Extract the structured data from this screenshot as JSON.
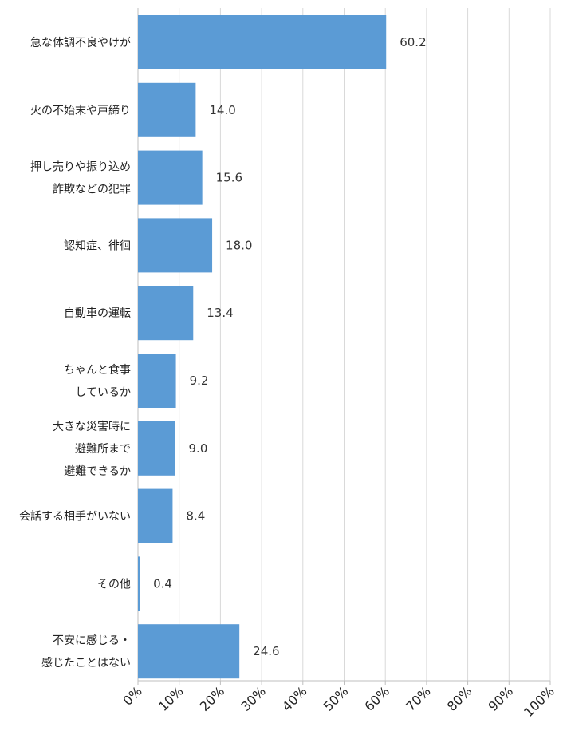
{
  "chart_data": {
    "type": "bar",
    "orientation": "horizontal",
    "categories": [
      [
        "急な体調不良やけが"
      ],
      [
        "火の不始末や戸締り"
      ],
      [
        "押し売りや振り込め",
        "詐欺などの犯罪"
      ],
      [
        "認知症、徘徊"
      ],
      [
        "自動車の運転"
      ],
      [
        "ちゃんと食事",
        "しているか"
      ],
      [
        "大きな災害時に",
        "避難所まで",
        "避難できるか"
      ],
      [
        "会話する相手がいない"
      ],
      [
        "その他"
      ],
      [
        "不安に感じる・",
        "感じたことはない"
      ]
    ],
    "values": [
      60.2,
      14.0,
      15.6,
      18.0,
      13.4,
      9.2,
      9.0,
      8.4,
      0.4,
      24.6
    ],
    "value_labels": [
      "60.2",
      "14.0",
      "15.6",
      "18.0",
      "13.4",
      "9.2",
      "9.0",
      "8.4",
      "0.4",
      "24.6"
    ],
    "x_ticks": [
      "0%",
      "10%",
      "20%",
      "30%",
      "40%",
      "50%",
      "60%",
      "70%",
      "80%",
      "90%",
      "100%"
    ],
    "xlim": [
      0,
      100
    ],
    "grid": true,
    "bar_color": "#5b9bd5",
    "grid_color": "#d9d9d9",
    "title": "",
    "xlabel": "",
    "ylabel": ""
  }
}
